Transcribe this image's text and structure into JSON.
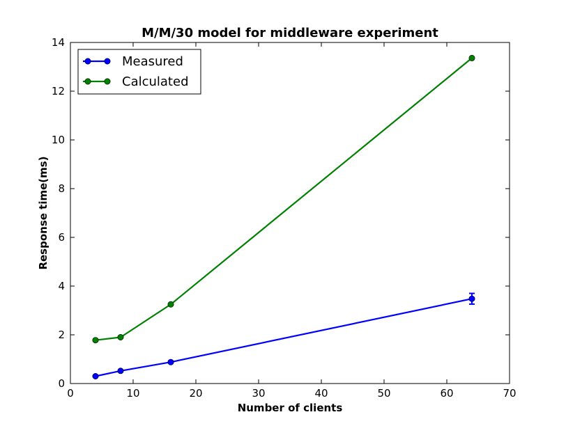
{
  "chart_data": {
    "type": "line",
    "title": "M/M/30 model for middleware experiment",
    "xlabel": "Number of clients",
    "ylabel": "Response time(ms)",
    "xlim": [
      0,
      70
    ],
    "ylim": [
      0,
      14
    ],
    "xticks": [
      "0",
      "10",
      "20",
      "30",
      "40",
      "50",
      "60",
      "70"
    ],
    "yticks": [
      "0",
      "2",
      "4",
      "6",
      "8",
      "10",
      "12",
      "14"
    ],
    "grid": false,
    "legend_position": "top-left",
    "series": [
      {
        "name": "Measured",
        "color": "#0000ff",
        "marker": "circle",
        "x": [
          4,
          8,
          16,
          64
        ],
        "y": [
          0.3,
          0.52,
          0.88,
          3.48
        ],
        "error": [
          0,
          0,
          0,
          0.22
        ]
      },
      {
        "name": "Calculated",
        "color": "#008000",
        "marker": "circle",
        "x": [
          4,
          8,
          16,
          64
        ],
        "y": [
          1.78,
          1.9,
          3.25,
          13.36
        ],
        "error": [
          0,
          0,
          0,
          0
        ]
      }
    ]
  }
}
